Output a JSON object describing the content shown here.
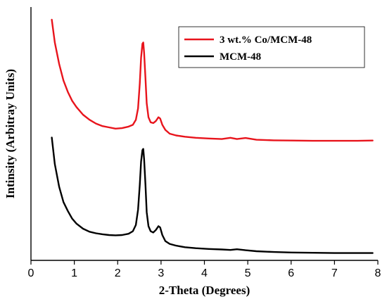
{
  "chart_data": {
    "type": "line",
    "xlabel": "2-Theta (Degrees)",
    "ylabel": "Intinsity (Arbitray Units)",
    "xlim": [
      0,
      8
    ],
    "xticks": [
      "0",
      "1",
      "2",
      "3",
      "4",
      "5",
      "6",
      "7",
      "8"
    ],
    "ylim": [
      0,
      100
    ],
    "y_ticks_shown": false,
    "grid": false,
    "legend": {
      "placement": "top-right",
      "boxed": true
    },
    "series": [
      {
        "name": "3 wt.% Co/MCM-48",
        "color": "#e8141c",
        "x": [
          0.48,
          0.55,
          0.65,
          0.75,
          0.85,
          0.95,
          1.05,
          1.2,
          1.35,
          1.5,
          1.65,
          1.8,
          1.95,
          2.1,
          2.25,
          2.35,
          2.42,
          2.47,
          2.51,
          2.54,
          2.57,
          2.59,
          2.61,
          2.64,
          2.67,
          2.71,
          2.76,
          2.82,
          2.88,
          2.94,
          2.98,
          3.03,
          3.1,
          3.2,
          3.35,
          3.55,
          3.8,
          4.1,
          4.4,
          4.6,
          4.75,
          4.95,
          5.2,
          5.6,
          6.0,
          6.5,
          7.0,
          7.5,
          7.88
        ],
        "values": [
          95.0,
          86.0,
          77.5,
          71.0,
          66.5,
          63.0,
          60.5,
          57.5,
          55.5,
          54.0,
          53.0,
          52.5,
          52.0,
          52.2,
          52.8,
          53.5,
          55.5,
          60.0,
          70.0,
          80.0,
          85.5,
          86.0,
          82.0,
          72.0,
          62.0,
          56.5,
          54.5,
          54.2,
          55.0,
          56.5,
          56.0,
          53.5,
          51.5,
          50.0,
          49.3,
          48.8,
          48.4,
          48.1,
          47.9,
          48.4,
          47.9,
          48.3,
          47.6,
          47.4,
          47.3,
          47.2,
          47.2,
          47.2,
          47.3
        ]
      },
      {
        "name": "MCM-48",
        "color": "#000000",
        "x": [
          0.48,
          0.55,
          0.65,
          0.75,
          0.85,
          0.95,
          1.05,
          1.2,
          1.35,
          1.5,
          1.65,
          1.8,
          1.95,
          2.1,
          2.25,
          2.35,
          2.42,
          2.47,
          2.51,
          2.54,
          2.57,
          2.59,
          2.61,
          2.64,
          2.67,
          2.71,
          2.76,
          2.82,
          2.88,
          2.94,
          2.98,
          3.03,
          3.1,
          3.2,
          3.35,
          3.55,
          3.8,
          4.1,
          4.4,
          4.6,
          4.75,
          4.95,
          5.2,
          5.6,
          6.0,
          6.5,
          7.0,
          7.5,
          7.88
        ],
        "values": [
          48.5,
          38.0,
          29.0,
          23.0,
          19.5,
          16.5,
          14.5,
          12.5,
          11.3,
          10.7,
          10.3,
          10.0,
          9.9,
          10.0,
          10.5,
          11.5,
          14.0,
          20.0,
          30.0,
          39.0,
          43.5,
          44.0,
          40.0,
          30.0,
          19.0,
          13.5,
          11.5,
          11.0,
          12.0,
          13.5,
          13.0,
          10.0,
          7.6,
          6.5,
          5.8,
          5.2,
          4.8,
          4.5,
          4.3,
          4.1,
          4.4,
          4.0,
          3.6,
          3.3,
          3.1,
          3.0,
          2.9,
          2.9,
          2.9
        ]
      }
    ]
  }
}
